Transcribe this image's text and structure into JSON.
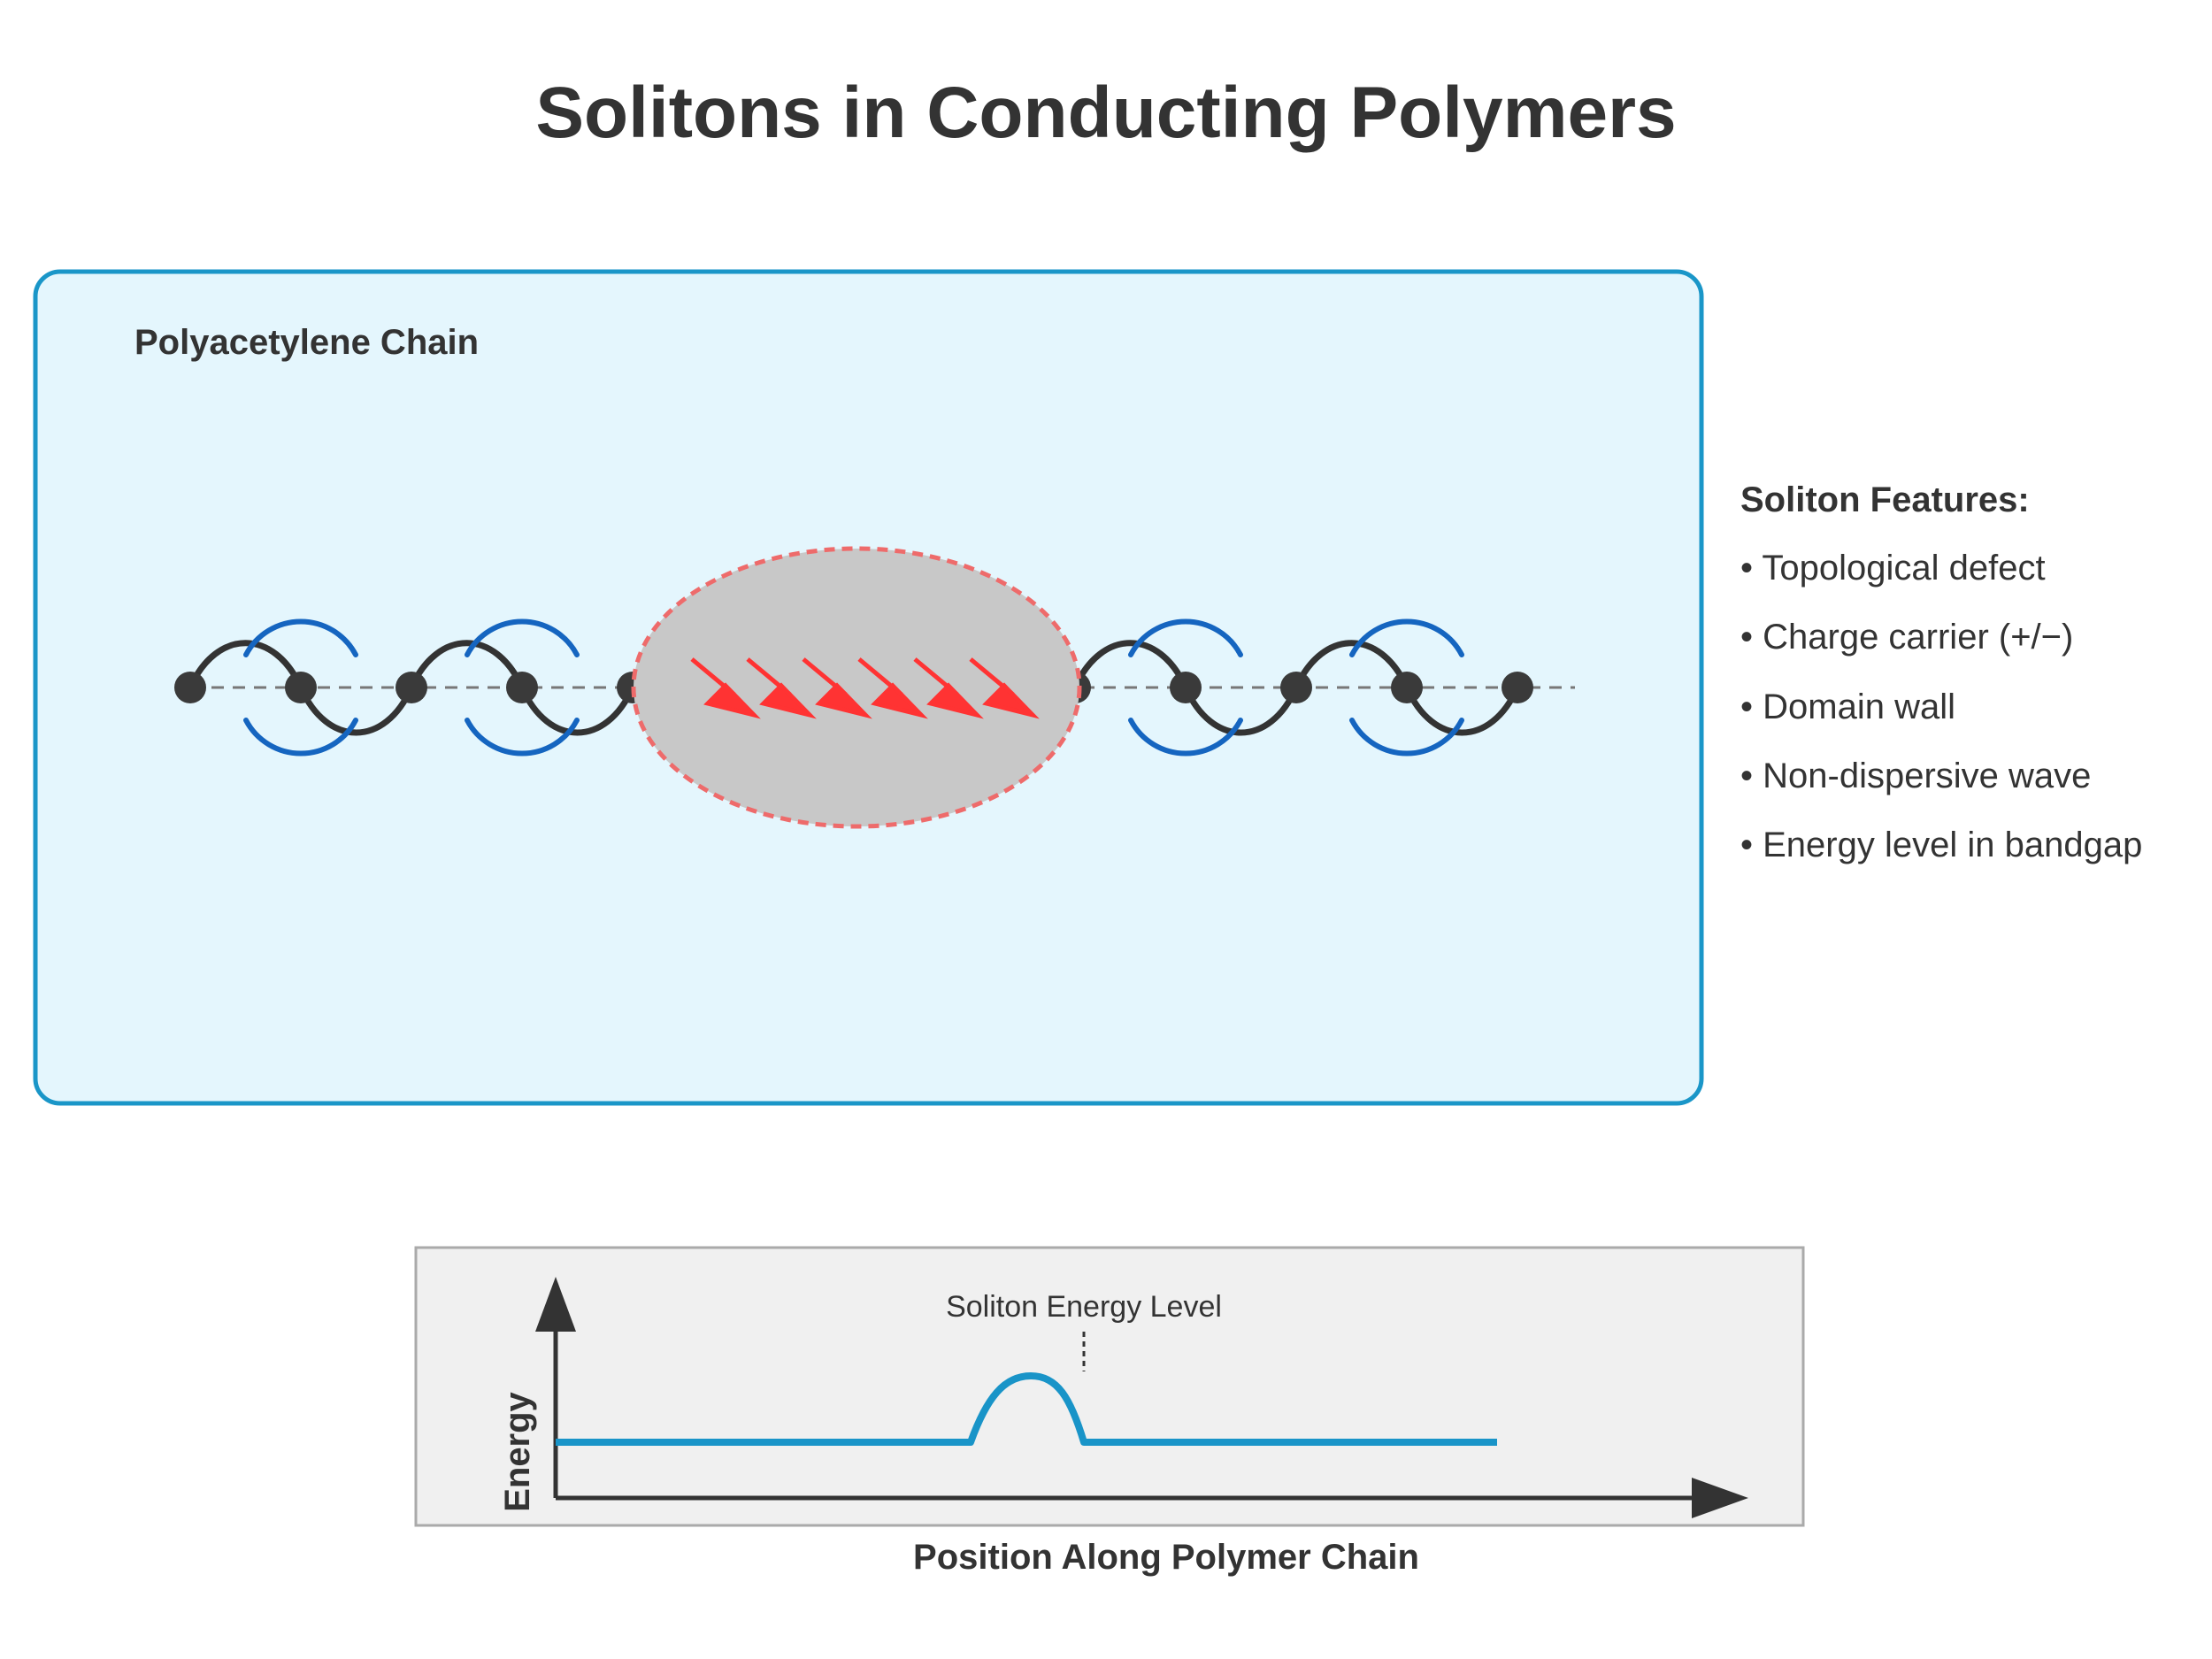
{
  "title": "Solitons in Conducting Polymers",
  "chain_panel": {
    "label": "Polyacetylene Chain"
  },
  "features": {
    "heading": "Soliton Features:",
    "items": [
      "• Topological defect",
      "• Charge carrier (+/−)",
      "• Domain wall",
      "• Non-dispersive wave",
      "• Energy level in bandgap"
    ]
  },
  "energy_plot": {
    "annotation": "Soliton Energy Level",
    "y_axis_label": "Energy",
    "x_axis_label": "Position Along Polymer Chain"
  },
  "colors": {
    "panel_fill": "#e4f6fd",
    "panel_border": "#1a96c8",
    "chain_bond": "#333333",
    "atom": "#3a3a3a",
    "pi_arc": "#1565c0",
    "soliton_fill": "#c8c8c8",
    "soliton_border": "#ee6b6b",
    "spin_arrow": "#ff3333",
    "energy_line": "#1994c8",
    "plot_fill": "#f0f0f0",
    "plot_border": "#aaaaaa"
  }
}
